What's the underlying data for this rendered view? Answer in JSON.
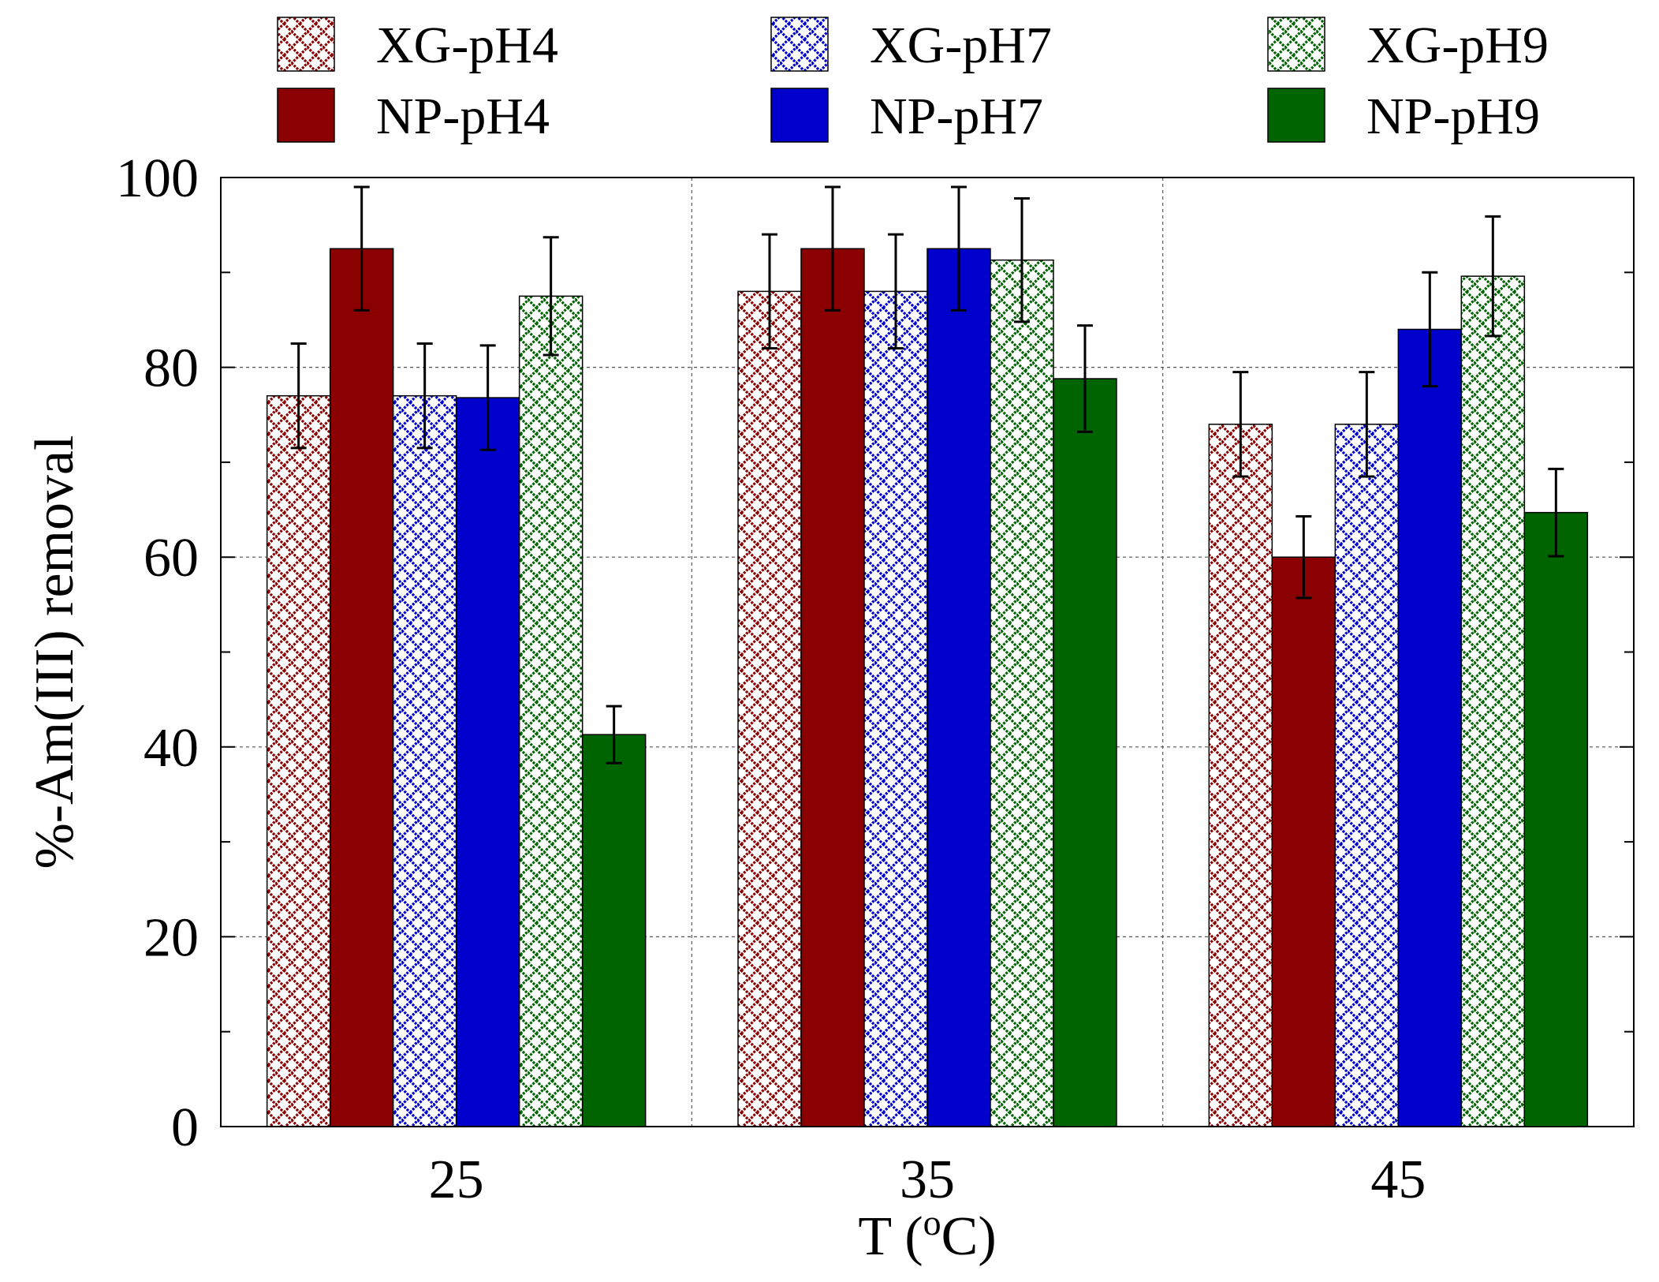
{
  "chart_data": {
    "type": "bar",
    "title": "",
    "xlabel": "T (",
    "xlabel_sup": "o",
    "xlabel_tail": "C)",
    "ylabel": "%-Am(III) removal",
    "categories": [
      "25",
      "35",
      "45"
    ],
    "ylim": [
      0,
      100
    ],
    "yticks": [
      "0",
      "20",
      "40",
      "60",
      "80",
      "100"
    ],
    "grid": true,
    "legend_position": "top",
    "series": [
      {
        "name": "XG-pH4",
        "color": "#8b0000",
        "pattern": "hatched",
        "values": [
          77,
          88,
          74
        ],
        "errors": [
          5.5,
          6,
          5.5
        ]
      },
      {
        "name": "NP-pH4",
        "color": "#8b0000",
        "pattern": "solid",
        "values": [
          92.5,
          92.5,
          60
        ],
        "errors": [
          6.5,
          6.5,
          4.3
        ]
      },
      {
        "name": "XG-pH7",
        "color": "#0000cc",
        "pattern": "hatched",
        "values": [
          77,
          88,
          74
        ],
        "errors": [
          5.5,
          6,
          5.5
        ]
      },
      {
        "name": "NP-pH7",
        "color": "#0000cc",
        "pattern": "solid",
        "values": [
          76.8,
          92.5,
          84
        ],
        "errors": [
          5.5,
          6.5,
          6
        ]
      },
      {
        "name": "XG-pH9",
        "color": "#006400",
        "pattern": "hatched",
        "values": [
          87.5,
          91.3,
          89.6
        ],
        "errors": [
          6.2,
          6.5,
          6.3
        ]
      },
      {
        "name": "NP-pH9",
        "color": "#006400",
        "pattern": "solid",
        "values": [
          41.3,
          78.8,
          64.7
        ],
        "errors": [
          3,
          5.6,
          4.6
        ]
      }
    ]
  }
}
